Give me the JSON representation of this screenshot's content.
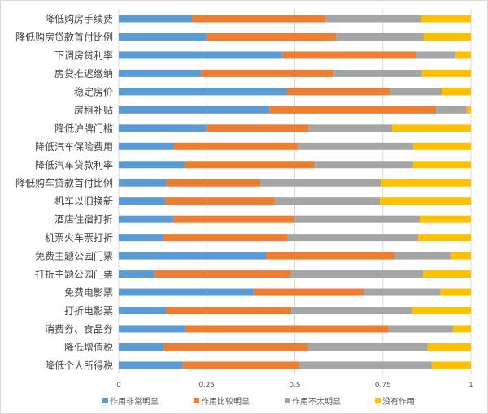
{
  "chart_data": {
    "type": "bar",
    "orientation": "horizontal",
    "stacked": "percent",
    "title": "",
    "xlabel": "",
    "ylabel": "",
    "xlim": [
      0,
      1
    ],
    "xticks": [
      "0",
      "0.25",
      "0.5",
      "0.75",
      "1"
    ],
    "grid": true,
    "legend_position": "bottom",
    "categories": [
      "降低购房手续费",
      "降低购房贷款首付比例",
      "下调房贷利率",
      "房贷推迟缴纳",
      "稳定房价",
      "房租补贴",
      "降低沪牌门槛",
      "降低汽车保险费用",
      "降低汽车贷款利率",
      "降低购车贷款首付比例",
      "机车以旧换新",
      "酒店住宿打折",
      "机票火车票打折",
      "免费主题公园门票",
      "打折主题公园门票",
      "免费电影票",
      "打折电影票",
      "消费券、食品券",
      "降低增值税",
      "降低个人所得税"
    ],
    "series": [
      {
        "name": "作用非常明显",
        "color": "#5b9bd5",
        "values": [
          0.208,
          0.249,
          0.465,
          0.234,
          0.478,
          0.428,
          0.249,
          0.157,
          0.187,
          0.136,
          0.133,
          0.156,
          0.127,
          0.419,
          0.101,
          0.383,
          0.134,
          0.189,
          0.127,
          0.182
        ]
      },
      {
        "name": "作用比较明显",
        "color": "#ed7d31",
        "values": [
          0.38,
          0.368,
          0.38,
          0.376,
          0.292,
          0.473,
          0.291,
          0.351,
          0.37,
          0.266,
          0.31,
          0.342,
          0.353,
          0.364,
          0.388,
          0.313,
          0.356,
          0.577,
          0.41,
          0.332
        ]
      },
      {
        "name": "作用不太明显",
        "color": "#a5a5a5",
        "values": [
          0.271,
          0.249,
          0.112,
          0.251,
          0.147,
          0.087,
          0.236,
          0.329,
          0.279,
          0.342,
          0.299,
          0.357,
          0.37,
          0.159,
          0.375,
          0.218,
          0.343,
          0.183,
          0.34,
          0.375
        ]
      },
      {
        "name": "没有作用",
        "color": "#ffc000",
        "values": [
          0.141,
          0.134,
          0.043,
          0.139,
          0.083,
          0.012,
          0.224,
          0.163,
          0.164,
          0.256,
          0.258,
          0.145,
          0.15,
          0.058,
          0.136,
          0.086,
          0.167,
          0.051,
          0.123,
          0.111
        ]
      }
    ]
  }
}
